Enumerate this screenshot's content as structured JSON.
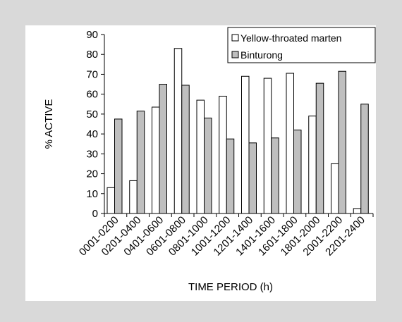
{
  "chart_data": {
    "type": "bar",
    "xlabel": "TIME PERIOD (h)",
    "ylabel": "% ACTIVE",
    "ylim": [
      0,
      90
    ],
    "yticks": [
      0,
      10,
      20,
      30,
      40,
      50,
      60,
      70,
      80,
      90
    ],
    "grid": false,
    "legend_position": "top-right",
    "categories": [
      "0001-0200",
      "0201-0400",
      "0401-0600",
      "0601-0800",
      "0801-1000",
      "1001-1200",
      "1201-1400",
      "1401-1600",
      "1601-1800",
      "1801-2000",
      "2001-2200",
      "2201-2400"
    ],
    "series": [
      {
        "name": "Yellow-throated marten",
        "color": "#ffffff",
        "values": [
          13,
          16.5,
          53.5,
          83,
          57,
          59,
          69,
          68,
          70.5,
          49,
          25,
          2.5
        ]
      },
      {
        "name": "Binturong",
        "color": "#bfbfbf",
        "values": [
          47.5,
          51.5,
          65,
          64.5,
          48,
          37.5,
          35.5,
          38,
          42,
          65.5,
          71.5,
          55
        ]
      }
    ]
  }
}
